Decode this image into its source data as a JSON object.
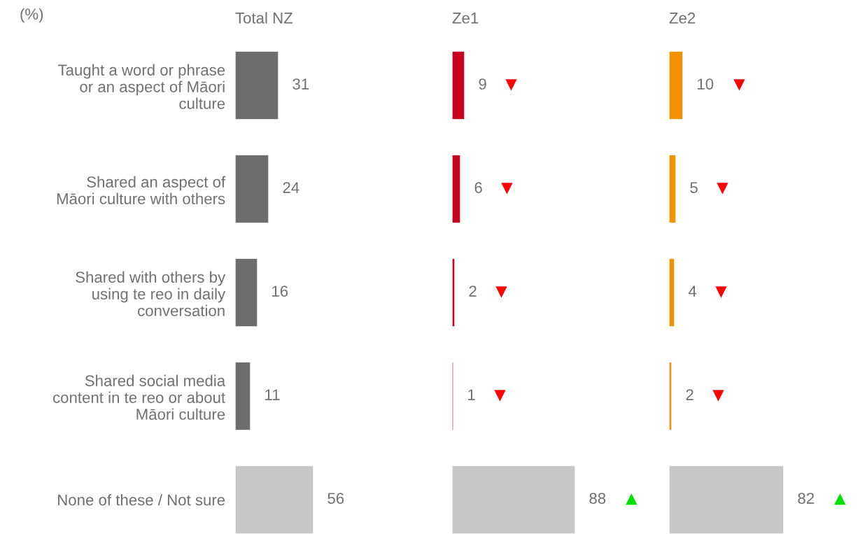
{
  "chart_data": [
    {
      "type": "bar",
      "orientation": "horizontal",
      "title": "Total NZ",
      "categories": [
        "Taught a word or phrase\nor an aspect of Māori\nculture",
        "Shared an aspect of\nMāori culture with others",
        "Shared with others by\nusing te reo in daily\nconversation",
        "Shared social media\ncontent in te reo or about\nMāori culture",
        "None of these / Not sure"
      ],
      "values": [
        31,
        24,
        16,
        11,
        56
      ],
      "colors": [
        "#6d6d6d",
        "#6d6d6d",
        "#6d6d6d",
        "#6d6d6d",
        "#c8c8c8"
      ],
      "data_labels": true,
      "tick_labels": "y",
      "grid": false,
      "legend": false,
      "annotations": [
        "(%)"
      ]
    },
    {
      "type": "bar",
      "orientation": "horizontal",
      "title": "Ze1",
      "categories": [
        "Taught a word or phrase\nor an aspect of Māori\nculture",
        "Shared an aspect of\nMāori culture with others",
        "Shared with others by\nusing te reo in daily\nconversation",
        "Shared social media\ncontent in te reo or about\nMāori culture",
        "None of these / Not sure"
      ],
      "values": [
        9,
        6,
        2,
        1,
        88
      ],
      "colors": [
        "#c8001e",
        "#c8001e",
        "#c8001e",
        "#c8001e",
        "#c8c8c8"
      ],
      "data_labels": true,
      "tick_labels": false,
      "grid": false,
      "legend": false,
      "annotations": [
        {
          "text": "▼",
          "x": 9,
          "y": "Taught a word or phrase\nor an aspect of Māori\nculture"
        },
        {
          "text": "▼",
          "x": 6,
          "y": "Shared an aspect of\nMāori culture with others"
        },
        {
          "text": "▼",
          "x": 2,
          "y": "Shared with others by\nusing te reo in daily\nconversation"
        },
        {
          "text": "▼",
          "x": 1,
          "y": "Shared social media\ncontent in te reo or about\nMāori culture"
        },
        {
          "text": "▲",
          "x": 88,
          "y": "None of these / Not sure"
        }
      ]
    },
    {
      "type": "bar",
      "orientation": "horizontal",
      "title": "Ze2",
      "categories": [
        "Taught a word or phrase\nor an aspect of Māori\nculture",
        "Shared an aspect of\nMāori culture with others",
        "Shared with others by\nusing te reo in daily\nconversation",
        "Shared social media\ncontent in te reo or about\nMāori culture",
        "None of these / Not sure"
      ],
      "values": [
        10,
        5,
        4,
        2,
        82
      ],
      "colors": [
        "#f39200",
        "#f39200",
        "#f39200",
        "#f39200",
        "#c8c8c8"
      ],
      "data_labels": true,
      "tick_labels": false,
      "grid": false,
      "legend": false,
      "annotations": [
        {
          "text": "▼",
          "x": 10,
          "y": "Taught a word or phrase\nor an aspect of Māori\nculture"
        },
        {
          "text": "▼",
          "x": 5,
          "y": "Shared an aspect of\nMāori culture with others"
        },
        {
          "text": "▼",
          "x": 4,
          "y": "Shared with others by\nusing te reo in daily\nconversation"
        },
        {
          "text": "▼",
          "x": 2,
          "y": "Shared social media\ncontent in te reo or about\nMāori culture"
        },
        {
          "text": "▲",
          "x": 82,
          "y": "None of these / Not sure"
        }
      ]
    }
  ]
}
